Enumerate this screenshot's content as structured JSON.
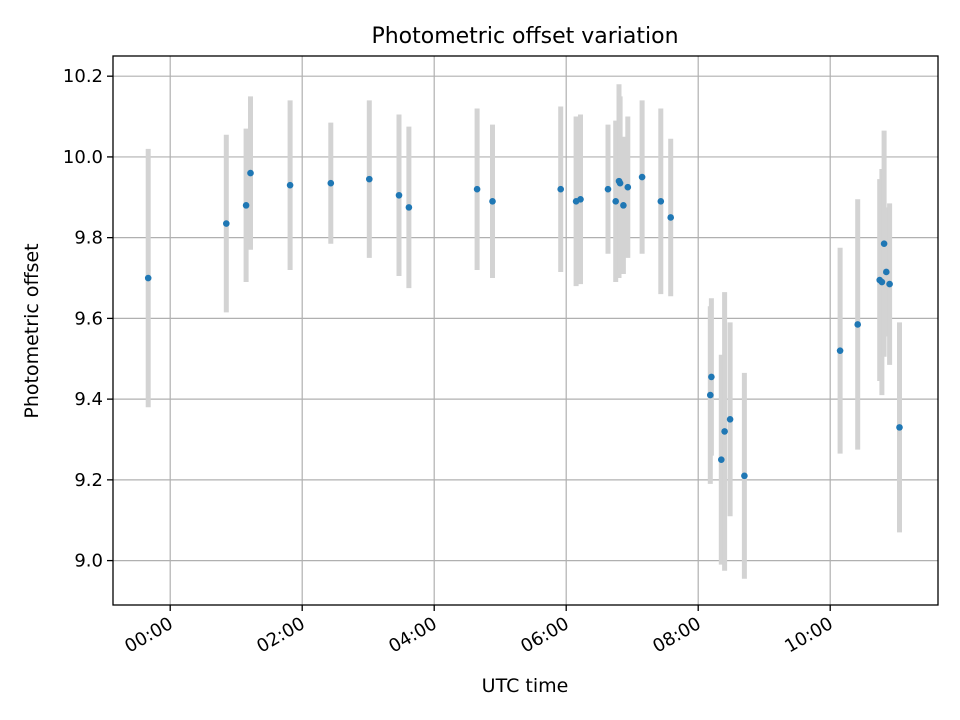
{
  "chart_data": {
    "type": "scatter",
    "title": "Photometric offset variation",
    "xlabel": "UTC time",
    "ylabel": "Photometric offset",
    "x_unit": "hours",
    "xlim": [
      "23:08",
      "11:38"
    ],
    "ylim": [
      8.89,
      10.25
    ],
    "xticks": [
      "00:00",
      "02:00",
      "04:00",
      "06:00",
      "08:00",
      "10:00"
    ],
    "yticks": [
      "9.0",
      "9.2",
      "9.4",
      "9.6",
      "9.8",
      "10.0",
      "10.2"
    ],
    "grid": true,
    "colors": {
      "point": "#1f77b4",
      "errorbar": "#d3d3d3",
      "grid": "#b0b0b0"
    },
    "points": [
      {
        "x": "23:40",
        "y": 9.7,
        "err": 0.32
      },
      {
        "x": "00:51",
        "y": 9.835,
        "err": 0.22
      },
      {
        "x": "01:09",
        "y": 9.88,
        "err": 0.19
      },
      {
        "x": "01:13",
        "y": 9.96,
        "err": 0.19
      },
      {
        "x": "01:49",
        "y": 9.93,
        "err": 0.21
      },
      {
        "x": "02:26",
        "y": 9.935,
        "err": 0.15
      },
      {
        "x": "03:01",
        "y": 9.945,
        "err": 0.195
      },
      {
        "x": "03:28",
        "y": 9.905,
        "err": 0.2
      },
      {
        "x": "03:37",
        "y": 9.875,
        "err": 0.2
      },
      {
        "x": "04:39",
        "y": 9.92,
        "err": 0.2
      },
      {
        "x": "04:53",
        "y": 9.89,
        "err": 0.19
      },
      {
        "x": "05:55",
        "y": 9.92,
        "err": 0.205
      },
      {
        "x": "06:09",
        "y": 9.89,
        "err": 0.21
      },
      {
        "x": "06:13",
        "y": 9.895,
        "err": 0.21
      },
      {
        "x": "06:38",
        "y": 9.92,
        "err": 0.16
      },
      {
        "x": "06:45",
        "y": 9.89,
        "err": 0.2
      },
      {
        "x": "06:48",
        "y": 9.94,
        "err": 0.24
      },
      {
        "x": "06:49",
        "y": 9.935,
        "err": 0.215
      },
      {
        "x": "06:52",
        "y": 9.88,
        "err": 0.17
      },
      {
        "x": "06:56",
        "y": 9.925,
        "err": 0.175
      },
      {
        "x": "07:09",
        "y": 9.95,
        "err": 0.19
      },
      {
        "x": "07:26",
        "y": 9.89,
        "err": 0.23
      },
      {
        "x": "07:35",
        "y": 9.85,
        "err": 0.195
      },
      {
        "x": "08:11",
        "y": 9.41,
        "err": 0.22
      },
      {
        "x": "08:12",
        "y": 9.455,
        "err": 0.195
      },
      {
        "x": "08:21",
        "y": 9.25,
        "err": 0.26
      },
      {
        "x": "08:24",
        "y": 9.32,
        "err": 0.345
      },
      {
        "x": "08:29",
        "y": 9.35,
        "err": 0.24
      },
      {
        "x": "08:42",
        "y": 9.21,
        "err": 0.255
      },
      {
        "x": "10:09",
        "y": 9.52,
        "err": 0.255
      },
      {
        "x": "10:25",
        "y": 9.585,
        "err": 0.31
      },
      {
        "x": "10:45",
        "y": 9.695,
        "err": 0.25
      },
      {
        "x": "10:47",
        "y": 9.69,
        "err": 0.28
      },
      {
        "x": "10:49",
        "y": 9.785,
        "err": 0.28
      },
      {
        "x": "10:51",
        "y": 9.715,
        "err": 0.16
      },
      {
        "x": "10:54",
        "y": 9.685,
        "err": 0.2
      },
      {
        "x": "11:03",
        "y": 9.33,
        "err": 0.26
      }
    ]
  }
}
